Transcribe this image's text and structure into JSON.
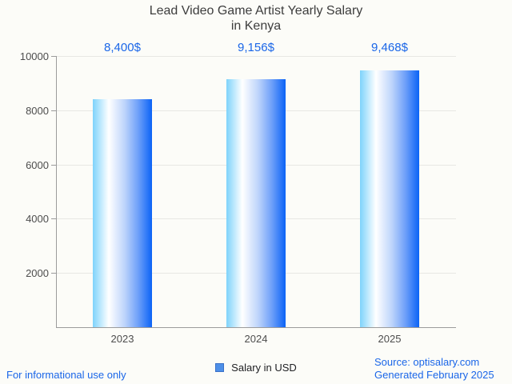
{
  "chart_data": {
    "type": "bar",
    "title": "Lead Video Game Artist Yearly Salary in Kenya",
    "title_lines": [
      "Lead Video Game Artist Yearly Salary",
      "in Kenya"
    ],
    "categories": [
      "2023",
      "2024",
      "2025"
    ],
    "values": [
      8400,
      9156,
      9468
    ],
    "value_labels": [
      "8,400$",
      "9,156$",
      "9,468$"
    ],
    "series": [
      {
        "name": "Salary in USD",
        "values": [
          8400,
          9156,
          9468
        ]
      }
    ],
    "legend": {
      "label": "Salary in USD",
      "position": "bottom"
    },
    "xlabel": "",
    "ylabel": "",
    "ylim": [
      0,
      10000
    ],
    "yticks": [
      2000,
      4000,
      6000,
      8000,
      10000
    ],
    "ytick_labels": [
      "2000",
      "4000",
      "6000",
      "8000",
      "10000"
    ],
    "grid": true
  },
  "footer": {
    "disclaimer": "For informational use only",
    "source": "Source: optisalary.com",
    "generated": "Generated February 2025"
  },
  "colors": {
    "background": "#fcfcf8",
    "title_text": "#3d3d3d",
    "tick_text": "#4d4d4d",
    "value_label": "#1a66e8",
    "footer_text": "#1a66e8",
    "axis": "#9b9b9b",
    "gridline": "#e8e8e4",
    "bar_gradient_start": "#7ed3fb",
    "bar_gradient_white": "#ffffff",
    "bar_gradient_end": "#0b63f6",
    "legend_swatch_fill": "#4d8fe8",
    "legend_swatch_border": "#3a70c8"
  }
}
